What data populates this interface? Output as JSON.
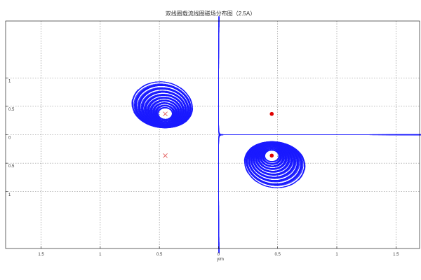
{
  "chart_data": {
    "type": "line",
    "title": "双线圈载流线圈磁场分布图（2.5A）",
    "xlabel": "y/m",
    "ylabel": "",
    "xlim": [
      -1.8,
      1.7
    ],
    "ylim": [
      -1.2,
      1.2
    ],
    "x_ticks": [
      -1.5,
      -1,
      -0.5,
      0,
      0.5,
      1,
      1.5
    ],
    "x_tick_labels": [
      "1.5",
      "1",
      "0.5",
      "0",
      "0.5",
      "1",
      "1.5"
    ],
    "y_tick_labels": [
      "1",
      "0.5",
      "0",
      "0.5",
      "1"
    ],
    "grid": true,
    "series": [
      {
        "marker": "x",
        "color": "#e05050",
        "points": [
          [
            -0.45,
            0.22
          ],
          [
            -0.45,
            -0.22
          ]
        ]
      },
      {
        "marker": "dot",
        "color": "#e00000",
        "points": [
          [
            0.45,
            0.22
          ],
          [
            0.45,
            -0.22
          ]
        ]
      }
    ],
    "field_line_color": "#1a1aff"
  }
}
